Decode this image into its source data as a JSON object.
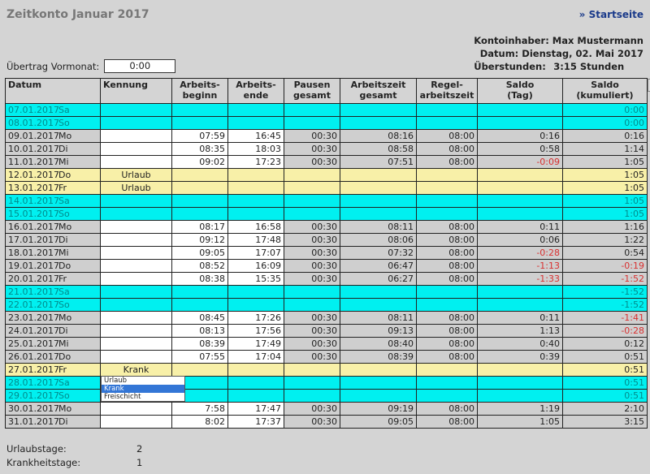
{
  "title": "Zeitkonto Januar 2017",
  "home_link": "» Startseite",
  "info": {
    "owner": "Kontoinhaber: Max Mustermann",
    "date": "Datum: Dienstag, 02. Mai 2017",
    "overtime_label": "Überstunden:",
    "overtime_value": "3:15 Stunden"
  },
  "carry": {
    "label": "Übertrag Vormonat:",
    "value": "0:00"
  },
  "columns": [
    "Datum",
    "Kennung",
    "Arbeits-\nbeginn",
    "Arbeits-\nende",
    "Pausen\ngesamt",
    "Arbeitszeit\ngesamt",
    "Regel-\narbeitszeit",
    "Saldo\n(Tag)",
    "Saldo\n(kumuliert)"
  ],
  "colors": {
    "weekend": "#00f0f0",
    "holiday": "#f8f0a8",
    "negative": "#d83030"
  },
  "rows": [
    {
      "date": "07.01.2017",
      "day": "Sa",
      "type": "weekend",
      "k": "",
      "b": "",
      "e": "",
      "p": "",
      "a": "",
      "r": "",
      "s": "",
      "c": "0:00"
    },
    {
      "date": "08.01.2017",
      "day": "So",
      "type": "weekend",
      "k": "",
      "b": "",
      "e": "",
      "p": "",
      "a": "",
      "r": "",
      "s": "",
      "c": "0:00"
    },
    {
      "date": "09.01.2017",
      "day": "Mo",
      "type": "work",
      "k": "",
      "b": "07:59",
      "e": "16:45",
      "p": "00:30",
      "a": "08:16",
      "r": "08:00",
      "s": "0:16",
      "c": "0:16"
    },
    {
      "date": "10.01.2017",
      "day": "Di",
      "type": "work",
      "k": "",
      "b": "08:35",
      "e": "18:03",
      "p": "00:30",
      "a": "08:58",
      "r": "08:00",
      "s": "0:58",
      "c": "1:14"
    },
    {
      "date": "11.01.2017",
      "day": "Mi",
      "type": "work",
      "k": "",
      "b": "09:02",
      "e": "17:23",
      "p": "00:30",
      "a": "07:51",
      "r": "08:00",
      "s": "-0:09",
      "c": "1:05"
    },
    {
      "date": "12.01.2017",
      "day": "Do",
      "type": "holiday",
      "k": "Urlaub",
      "b": "",
      "e": "",
      "p": "",
      "a": "",
      "r": "",
      "s": "",
      "c": "1:05"
    },
    {
      "date": "13.01.2017",
      "day": "Fr",
      "type": "holiday",
      "k": "Urlaub",
      "b": "",
      "e": "",
      "p": "",
      "a": "",
      "r": "",
      "s": "",
      "c": "1:05"
    },
    {
      "date": "14.01.2017",
      "day": "Sa",
      "type": "weekend",
      "k": "",
      "b": "",
      "e": "",
      "p": "",
      "a": "",
      "r": "",
      "s": "",
      "c": "1:05"
    },
    {
      "date": "15.01.2017",
      "day": "So",
      "type": "weekend",
      "k": "",
      "b": "",
      "e": "",
      "p": "",
      "a": "",
      "r": "",
      "s": "",
      "c": "1:05"
    },
    {
      "date": "16.01.2017",
      "day": "Mo",
      "type": "work",
      "k": "",
      "b": "08:17",
      "e": "16:58",
      "p": "00:30",
      "a": "08:11",
      "r": "08:00",
      "s": "0:11",
      "c": "1:16"
    },
    {
      "date": "17.01.2017",
      "day": "Di",
      "type": "work",
      "k": "",
      "b": "09:12",
      "e": "17:48",
      "p": "00:30",
      "a": "08:06",
      "r": "08:00",
      "s": "0:06",
      "c": "1:22"
    },
    {
      "date": "18.01.2017",
      "day": "Mi",
      "type": "work",
      "k": "",
      "b": "09:05",
      "e": "17:07",
      "p": "00:30",
      "a": "07:32",
      "r": "08:00",
      "s": "-0:28",
      "c": "0:54"
    },
    {
      "date": "19.01.2017",
      "day": "Do",
      "type": "work",
      "k": "",
      "b": "08:52",
      "e": "16:09",
      "p": "00:30",
      "a": "06:47",
      "r": "08:00",
      "s": "-1:13",
      "c": "-0:19"
    },
    {
      "date": "20.01.2017",
      "day": "Fr",
      "type": "work",
      "k": "",
      "b": "08:38",
      "e": "15:35",
      "p": "00:30",
      "a": "06:27",
      "r": "08:00",
      "s": "-1:33",
      "c": "-1:52"
    },
    {
      "date": "21.01.2017",
      "day": "Sa",
      "type": "weekend",
      "k": "",
      "b": "",
      "e": "",
      "p": "",
      "a": "",
      "r": "",
      "s": "",
      "c": "-1:52"
    },
    {
      "date": "22.01.2017",
      "day": "So",
      "type": "weekend",
      "k": "",
      "b": "",
      "e": "",
      "p": "",
      "a": "",
      "r": "",
      "s": "",
      "c": "-1:52"
    },
    {
      "date": "23.01.2017",
      "day": "Mo",
      "type": "work",
      "k": "",
      "b": "08:45",
      "e": "17:26",
      "p": "00:30",
      "a": "08:11",
      "r": "08:00",
      "s": "0:11",
      "c": "-1:41"
    },
    {
      "date": "24.01.2017",
      "day": "Di",
      "type": "work",
      "k": "",
      "b": "08:13",
      "e": "17:56",
      "p": "00:30",
      "a": "09:13",
      "r": "08:00",
      "s": "1:13",
      "c": "-0:28"
    },
    {
      "date": "25.01.2017",
      "day": "Mi",
      "type": "work",
      "k": "",
      "b": "08:39",
      "e": "17:49",
      "p": "00:30",
      "a": "08:40",
      "r": "08:00",
      "s": "0:40",
      "c": "0:12"
    },
    {
      "date": "26.01.2017",
      "day": "Do",
      "type": "work",
      "k": "",
      "b": "07:55",
      "e": "17:04",
      "p": "00:30",
      "a": "08:39",
      "r": "08:00",
      "s": "0:39",
      "c": "0:51"
    },
    {
      "date": "27.01.2017",
      "day": "Fr",
      "type": "holiday",
      "k": "Krank",
      "select": true,
      "b": "",
      "e": "",
      "p": "",
      "a": "",
      "r": "",
      "s": "",
      "c": "0:51"
    },
    {
      "date": "28.01.2017",
      "day": "Sa",
      "type": "weekend",
      "k": "",
      "b": "",
      "e": "",
      "p": "",
      "a": "",
      "r": "",
      "s": "",
      "c": "0:51"
    },
    {
      "date": "29.01.2017",
      "day": "So",
      "type": "weekend",
      "k": "",
      "b": "",
      "e": "",
      "p": "",
      "a": "",
      "r": "",
      "s": "",
      "c": "0:51"
    },
    {
      "date": "30.01.2017",
      "day": "Mo",
      "type": "work",
      "k": "",
      "b": "7:58",
      "e": "17:47",
      "p": "00:30",
      "a": "09:19",
      "r": "08:00",
      "s": "1:19",
      "c": "2:10"
    },
    {
      "date": "31.01.2017",
      "day": "Di",
      "type": "work",
      "k": "",
      "b": "8:02",
      "e": "17:37",
      "p": "00:30",
      "a": "09:05",
      "r": "08:00",
      "s": "1:05",
      "c": "3:15"
    }
  ],
  "dropdown": {
    "options": [
      "Urlaub",
      "Krank",
      "Freischicht"
    ],
    "selected": "Krank"
  },
  "summary": [
    {
      "label": "Urlaubstage:",
      "value": "2"
    },
    {
      "label": "Krankheitstage:",
      "value": "1"
    }
  ]
}
